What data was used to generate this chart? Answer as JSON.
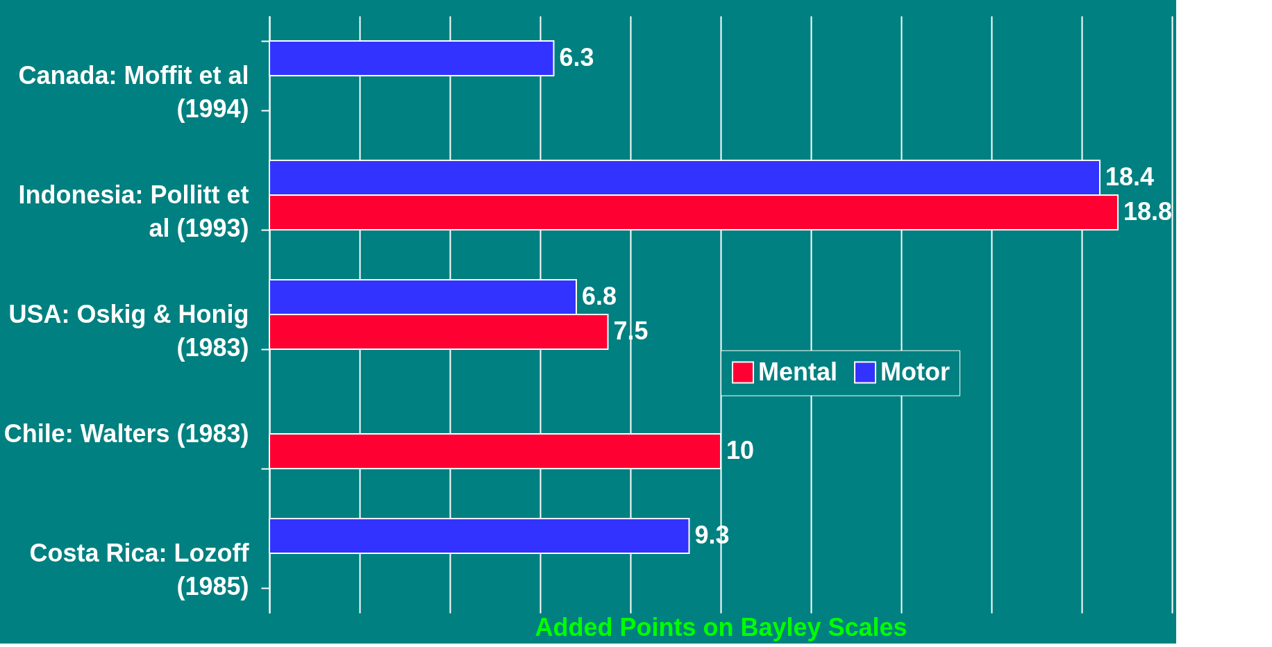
{
  "chart_data": {
    "type": "bar",
    "orientation": "horizontal",
    "xlabel": "Added Points on Bayley Scales",
    "categories": [
      "Canada: Moffit et al (1994)",
      "Indonesia: Pollitt et al (1993)",
      "USA: Oskig & Honig (1983)",
      "Chile: Walters (1983)",
      "Costa Rica: Lozoff (1985)"
    ],
    "series": [
      {
        "name": "Mental",
        "color": "#ff0033",
        "values": [
          null,
          18.8,
          7.5,
          10,
          null
        ]
      },
      {
        "name": "Motor",
        "color": "#3333ff",
        "values": [
          6.3,
          18.4,
          6.8,
          null,
          9.3
        ]
      }
    ],
    "xlim": [
      0,
      20
    ],
    "xticks": [
      {
        "value": 0,
        "label": null
      },
      {
        "value": 2,
        "label": null
      },
      {
        "value": 4,
        "label": null
      },
      {
        "value": 6,
        "label": null
      },
      {
        "value": 8,
        "label": null
      },
      {
        "value": 10,
        "label": null
      },
      {
        "value": 12,
        "label": null
      },
      {
        "value": 14,
        "label": null
      },
      {
        "value": 16,
        "label": null
      },
      {
        "value": 18,
        "label": null
      },
      {
        "value": 20,
        "label": null
      }
    ],
    "tick_labels": "y",
    "grid": "x",
    "legend": "right",
    "data_labels": true
  }
}
